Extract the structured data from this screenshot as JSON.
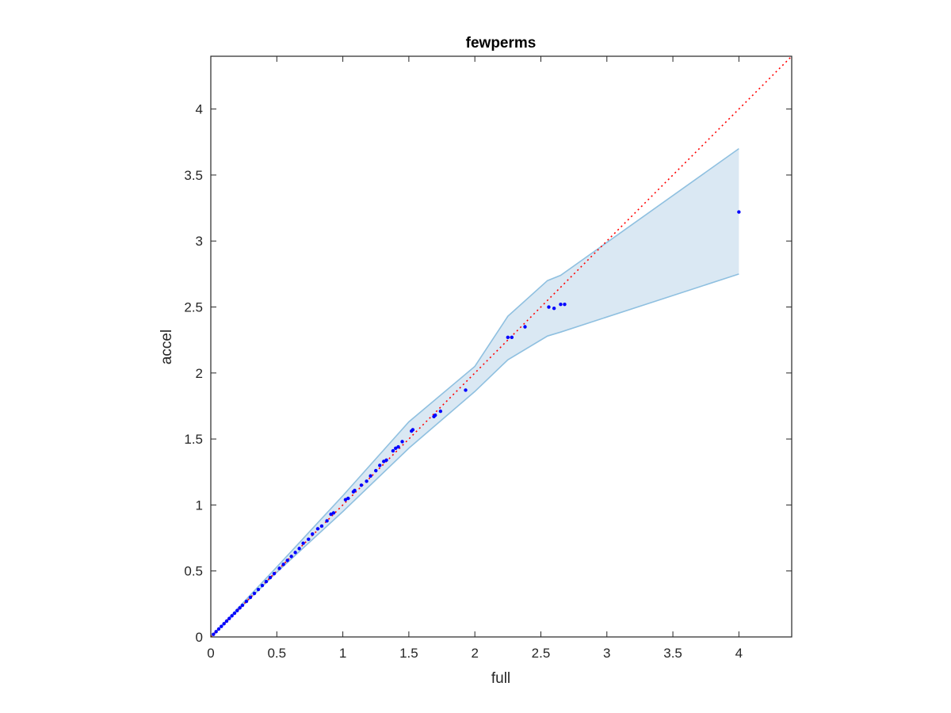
{
  "chart_data": {
    "type": "scatter",
    "title": "fewperms",
    "xlabel": "full",
    "ylabel": "accel",
    "xlim": [
      0,
      4.4
    ],
    "ylim": [
      0,
      4.4
    ],
    "xticks": [
      0,
      0.5,
      1,
      1.5,
      2,
      2.5,
      3,
      3.5,
      4
    ],
    "yticks": [
      0,
      0.5,
      1,
      1.5,
      2,
      2.5,
      3,
      3.5,
      4
    ],
    "xtick_labels": [
      "0",
      "0.5",
      "1",
      "1.5",
      "2",
      "2.5",
      "3",
      "3.5",
      "4"
    ],
    "ytick_labels": [
      "0",
      "0.5",
      "1",
      "1.5",
      "2",
      "2.5",
      "3",
      "3.5",
      "4"
    ],
    "grid": false,
    "colors": {
      "points": "#0000ff",
      "reference_line": "#ff0000",
      "band_fill": "#dae8f3",
      "band_edge": "#8fc0e0",
      "axes": "#262626"
    },
    "reference_line": {
      "style": "dotted",
      "points": [
        [
          0,
          0
        ],
        [
          4.4,
          4.4
        ]
      ]
    },
    "band": {
      "upper": [
        [
          0,
          0
        ],
        [
          0.5,
          0.53
        ],
        [
          1,
          1.07
        ],
        [
          1.5,
          1.63
        ],
        [
          2,
          2.05
        ],
        [
          2.25,
          2.43
        ],
        [
          2.55,
          2.7
        ],
        [
          2.65,
          2.74
        ],
        [
          4,
          3.7
        ]
      ],
      "lower": [
        [
          0,
          0
        ],
        [
          0.5,
          0.49
        ],
        [
          1,
          0.95
        ],
        [
          1.5,
          1.43
        ],
        [
          2,
          1.86
        ],
        [
          2.25,
          2.1
        ],
        [
          2.55,
          2.28
        ],
        [
          2.65,
          2.31
        ],
        [
          4,
          2.75
        ]
      ]
    },
    "points": [
      [
        0.02,
        0.02
      ],
      [
        0.04,
        0.04
      ],
      [
        0.06,
        0.06
      ],
      [
        0.08,
        0.08
      ],
      [
        0.1,
        0.1
      ],
      [
        0.12,
        0.12
      ],
      [
        0.14,
        0.14
      ],
      [
        0.16,
        0.16
      ],
      [
        0.18,
        0.18
      ],
      [
        0.2,
        0.2
      ],
      [
        0.22,
        0.22
      ],
      [
        0.24,
        0.24
      ],
      [
        0.27,
        0.27
      ],
      [
        0.3,
        0.3
      ],
      [
        0.33,
        0.33
      ],
      [
        0.36,
        0.36
      ],
      [
        0.39,
        0.39
      ],
      [
        0.42,
        0.42
      ],
      [
        0.45,
        0.45
      ],
      [
        0.48,
        0.48
      ],
      [
        0.52,
        0.52
      ],
      [
        0.55,
        0.55
      ],
      [
        0.58,
        0.58
      ],
      [
        0.61,
        0.61
      ],
      [
        0.64,
        0.64
      ],
      [
        0.67,
        0.67
      ],
      [
        0.7,
        0.71
      ],
      [
        0.74,
        0.74
      ],
      [
        0.77,
        0.78
      ],
      [
        0.81,
        0.82
      ],
      [
        0.84,
        0.84
      ],
      [
        0.88,
        0.88
      ],
      [
        0.91,
        0.93
      ],
      [
        0.93,
        0.94
      ],
      [
        1.02,
        1.04
      ],
      [
        1.04,
        1.05
      ],
      [
        1.08,
        1.1
      ],
      [
        1.09,
        1.11
      ],
      [
        1.14,
        1.15
      ],
      [
        1.18,
        1.18
      ],
      [
        1.21,
        1.22
      ],
      [
        1.25,
        1.26
      ],
      [
        1.28,
        1.3
      ],
      [
        1.31,
        1.33
      ],
      [
        1.33,
        1.34
      ],
      [
        1.38,
        1.41
      ],
      [
        1.4,
        1.43
      ],
      [
        1.42,
        1.44
      ],
      [
        1.45,
        1.48
      ],
      [
        1.52,
        1.56
      ],
      [
        1.53,
        1.57
      ],
      [
        1.69,
        1.67
      ],
      [
        1.7,
        1.68
      ],
      [
        1.74,
        1.71
      ],
      [
        1.93,
        1.87
      ],
      [
        2.25,
        2.27
      ],
      [
        2.28,
        2.27
      ],
      [
        2.38,
        2.35
      ],
      [
        2.56,
        2.5
      ],
      [
        2.6,
        2.49
      ],
      [
        2.65,
        2.52
      ],
      [
        2.68,
        2.52
      ],
      [
        4.0,
        3.22
      ]
    ]
  }
}
